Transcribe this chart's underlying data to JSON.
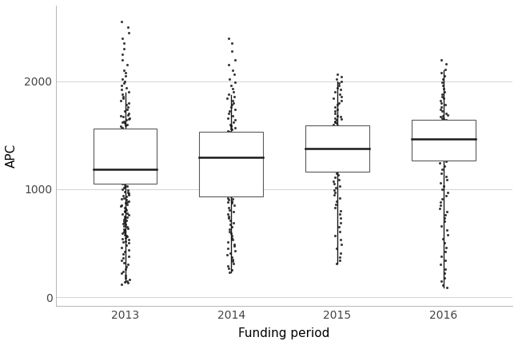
{
  "years": [
    "2013",
    "2014",
    "2015",
    "2016"
  ],
  "box_stats": {
    "2013": {
      "q1": 1050,
      "median": 1185,
      "q3": 1560,
      "whisker_low": 140,
      "whisker_high": 1890
    },
    "2014": {
      "q1": 930,
      "median": 1295,
      "q3": 1530,
      "whisker_low": 230,
      "whisker_high": 1870
    },
    "2015": {
      "q1": 1165,
      "median": 1375,
      "q3": 1590,
      "whisker_low": 310,
      "whisker_high": 2000
    },
    "2016": {
      "q1": 1265,
      "median": 1465,
      "q3": 1645,
      "whisker_low": 90,
      "whisker_high": 2100
    }
  },
  "all_data": {
    "2013": [
      115,
      130,
      140,
      150,
      160,
      180,
      200,
      220,
      240,
      260,
      280,
      300,
      320,
      340,
      360,
      380,
      400,
      420,
      440,
      460,
      480,
      500,
      510,
      520,
      530,
      540,
      550,
      560,
      570,
      580,
      590,
      600,
      610,
      620,
      630,
      640,
      650,
      660,
      670,
      680,
      690,
      700,
      710,
      720,
      730,
      740,
      750,
      760,
      770,
      780,
      790,
      800,
      810,
      820,
      830,
      840,
      850,
      860,
      870,
      880,
      890,
      900,
      910,
      920,
      930,
      940,
      950,
      960,
      970,
      980,
      990,
      1000,
      1010,
      1020,
      1030,
      1040,
      1050,
      1060,
      1070,
      1080,
      1090,
      1100,
      1110,
      1115,
      1120,
      1125,
      1130,
      1135,
      1140,
      1145,
      1150,
      1155,
      1160,
      1165,
      1170,
      1175,
      1180,
      1183,
      1185,
      1187,
      1190,
      1195,
      1200,
      1205,
      1210,
      1215,
      1220,
      1225,
      1230,
      1235,
      1240,
      1245,
      1250,
      1255,
      1260,
      1265,
      1270,
      1275,
      1280,
      1285,
      1290,
      1295,
      1300,
      1310,
      1320,
      1330,
      1340,
      1350,
      1360,
      1370,
      1380,
      1390,
      1400,
      1410,
      1420,
      1430,
      1440,
      1450,
      1460,
      1470,
      1480,
      1490,
      1500,
      1510,
      1520,
      1530,
      1540,
      1550,
      1560,
      1570,
      1580,
      1590,
      1600,
      1610,
      1620,
      1630,
      1640,
      1650,
      1660,
      1670,
      1680,
      1690,
      1700,
      1720,
      1740,
      1760,
      1780,
      1800,
      1820,
      1840,
      1860,
      1880,
      1900,
      1920,
      1940,
      1960,
      1980,
      2000,
      2020,
      2050,
      2080,
      2100,
      2150,
      2200,
      2250,
      2300,
      2350,
      2400,
      2450,
      2500,
      2550
    ],
    "2014": [
      230,
      250,
      270,
      290,
      310,
      330,
      350,
      370,
      390,
      410,
      430,
      450,
      470,
      490,
      510,
      530,
      550,
      570,
      590,
      610,
      630,
      650,
      670,
      690,
      710,
      730,
      750,
      770,
      790,
      810,
      830,
      850,
      870,
      880,
      890,
      900,
      910,
      920,
      930,
      940,
      950,
      960,
      970,
      980,
      990,
      1000,
      1010,
      1020,
      1030,
      1040,
      1050,
      1060,
      1070,
      1080,
      1090,
      1100,
      1110,
      1120,
      1130,
      1140,
      1150,
      1160,
      1170,
      1180,
      1190,
      1200,
      1210,
      1220,
      1230,
      1240,
      1250,
      1260,
      1270,
      1280,
      1285,
      1290,
      1295,
      1300,
      1305,
      1310,
      1315,
      1320,
      1325,
      1330,
      1335,
      1340,
      1345,
      1350,
      1360,
      1370,
      1380,
      1390,
      1400,
      1410,
      1420,
      1430,
      1440,
      1450,
      1460,
      1470,
      1480,
      1490,
      1500,
      1510,
      1520,
      1530,
      1540,
      1550,
      1560,
      1570,
      1580,
      1590,
      1600,
      1620,
      1640,
      1660,
      1680,
      1700,
      1720,
      1740,
      1760,
      1780,
      1800,
      1820,
      1840,
      1860,
      1880,
      1900,
      1930,
      1960,
      1990,
      2020,
      2060,
      2100,
      2150,
      2200,
      2280,
      2350,
      2400
    ],
    "2015": [
      310,
      340,
      370,
      410,
      450,
      490,
      530,
      570,
      610,
      650,
      690,
      730,
      770,
      800,
      830,
      860,
      890,
      920,
      950,
      970,
      990,
      1010,
      1030,
      1050,
      1070,
      1090,
      1110,
      1130,
      1150,
      1165,
      1175,
      1185,
      1195,
      1205,
      1215,
      1225,
      1235,
      1245,
      1255,
      1265,
      1275,
      1285,
      1295,
      1305,
      1315,
      1325,
      1335,
      1345,
      1355,
      1365,
      1370,
      1375,
      1380,
      1385,
      1390,
      1395,
      1400,
      1410,
      1420,
      1430,
      1440,
      1450,
      1460,
      1470,
      1480,
      1490,
      1500,
      1510,
      1520,
      1530,
      1540,
      1550,
      1560,
      1570,
      1580,
      1590,
      1600,
      1610,
      1620,
      1630,
      1640,
      1650,
      1660,
      1670,
      1680,
      1700,
      1720,
      1740,
      1760,
      1780,
      1800,
      1820,
      1840,
      1860,
      1880,
      1900,
      1920,
      1940,
      1960,
      1980,
      2000,
      2020,
      2040,
      2060
    ],
    "2016": [
      90,
      110,
      150,
      180,
      220,
      260,
      300,
      340,
      380,
      420,
      460,
      500,
      540,
      580,
      620,
      660,
      700,
      730,
      760,
      790,
      820,
      850,
      880,
      910,
      940,
      970,
      1000,
      1030,
      1060,
      1090,
      1120,
      1150,
      1180,
      1210,
      1240,
      1260,
      1270,
      1280,
      1290,
      1300,
      1310,
      1320,
      1330,
      1340,
      1350,
      1360,
      1370,
      1380,
      1390,
      1400,
      1410,
      1420,
      1430,
      1440,
      1450,
      1455,
      1460,
      1465,
      1470,
      1475,
      1480,
      1485,
      1490,
      1495,
      1500,
      1505,
      1510,
      1515,
      1520,
      1530,
      1540,
      1550,
      1560,
      1570,
      1580,
      1590,
      1600,
      1610,
      1620,
      1630,
      1640,
      1650,
      1660,
      1670,
      1680,
      1690,
      1700,
      1720,
      1740,
      1760,
      1780,
      1800,
      1820,
      1840,
      1860,
      1880,
      1900,
      1930,
      1960,
      1990,
      2020,
      2050,
      2080,
      2110,
      2160,
      2200
    ]
  },
  "bg_color": "#ffffff",
  "box_edgecolor": "#5a5a5a",
  "median_color": "#1a1a1a",
  "whisker_color": "#1a1a1a",
  "point_color": "#1a1a1a",
  "grid_color": "#d3d3d3",
  "ylabel": "APC",
  "xlabel": "Funding period",
  "ylim": [
    -80,
    2700
  ],
  "yticks": [
    0,
    1000,
    2000
  ],
  "box_width": 0.6,
  "point_size": 5,
  "point_alpha": 0.85,
  "jitter_amount": 0.04
}
